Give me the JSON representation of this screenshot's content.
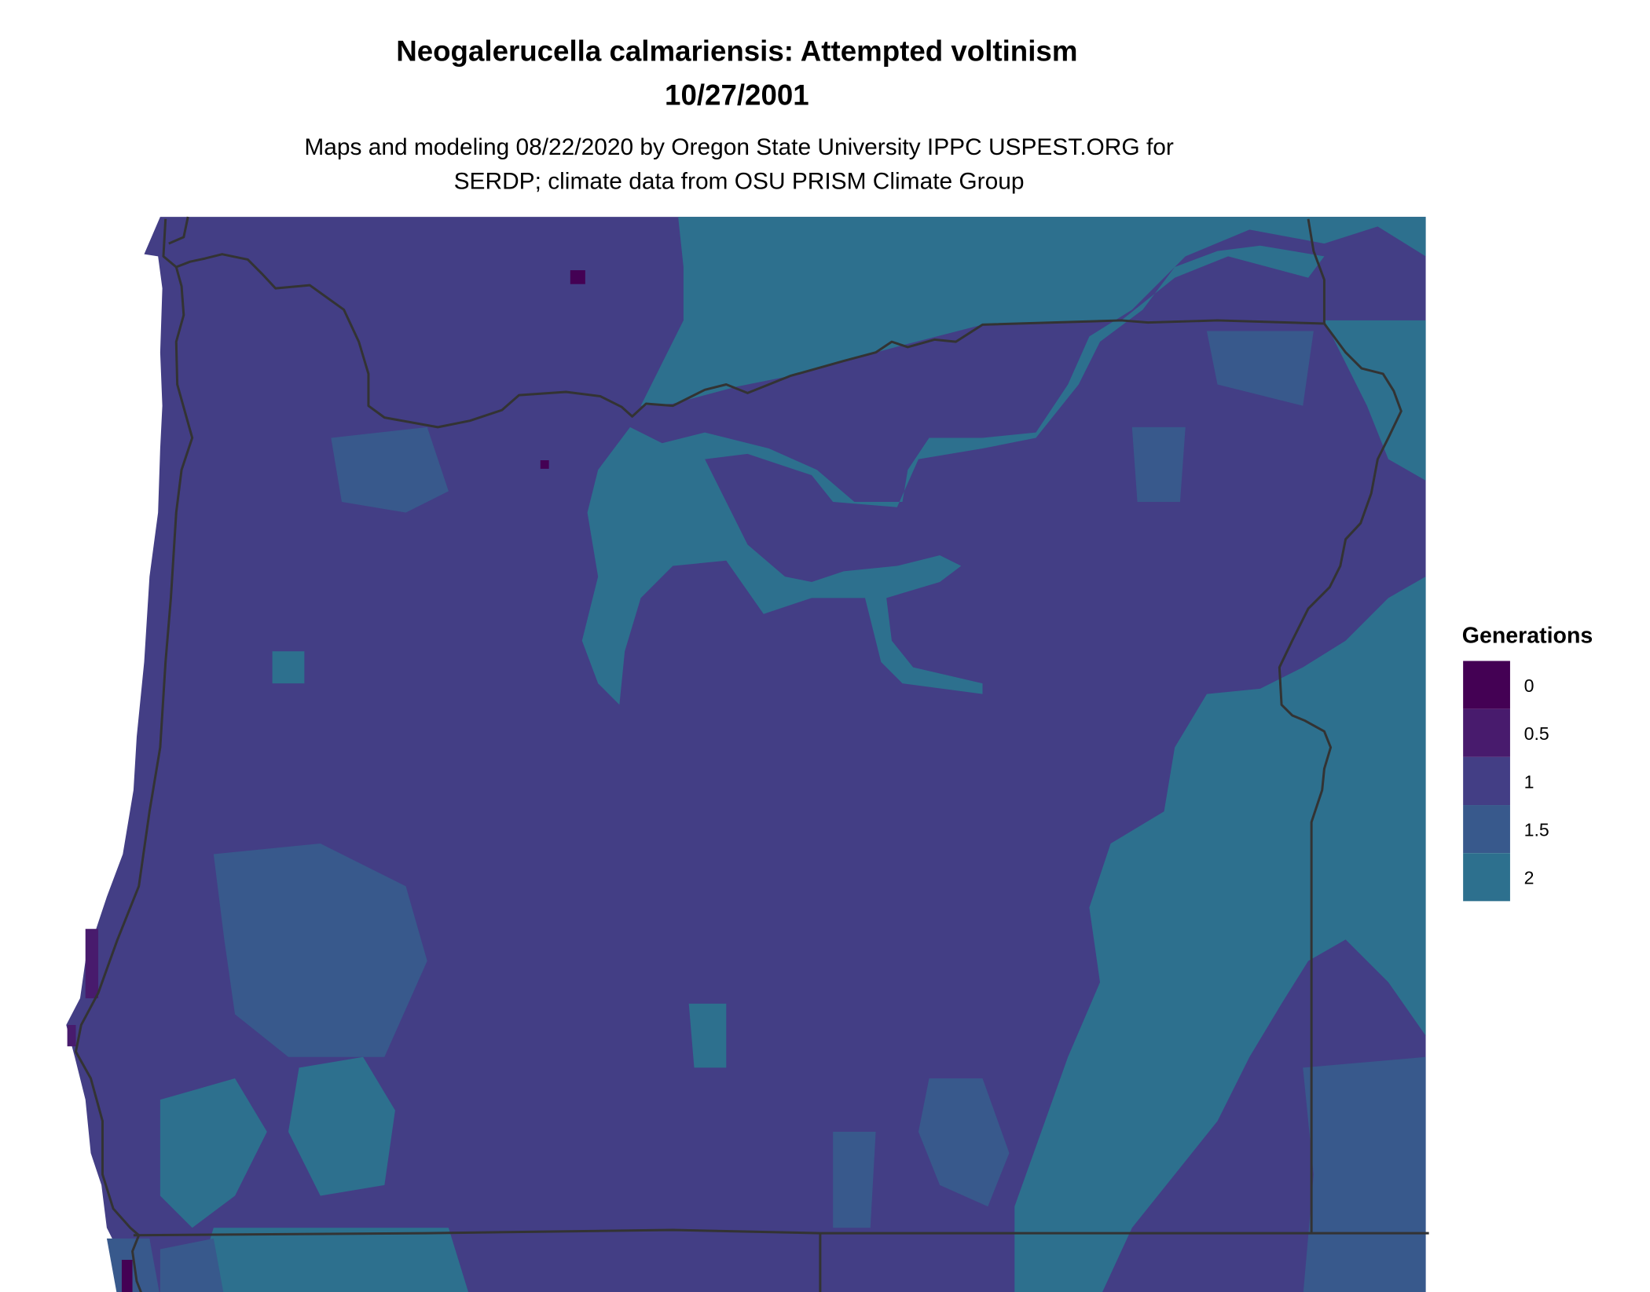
{
  "title": "Neogalerucella calmariensis: Attempted voltinism",
  "date": "10/27/2001",
  "subtitle_line1": "Maps and modeling 08/22/2020 by Oregon State University IPPC USPEST.ORG for",
  "subtitle_line2": "SERDP; climate data from OSU PRISM Climate Group",
  "legend": {
    "title": "Generations",
    "items": [
      {
        "label": "0",
        "value": 0,
        "color": "#440154"
      },
      {
        "label": "0.5",
        "value": 0.5,
        "color": "#481B6D"
      },
      {
        "label": "1",
        "value": 1,
        "color": "#433E85"
      },
      {
        "label": "1.5",
        "value": 1.5,
        "color": "#38598C"
      },
      {
        "label": "2",
        "value": 2,
        "color": "#2D708E"
      }
    ]
  },
  "colors": {
    "border": "#333333",
    "background": "#ffffff"
  },
  "chart_data": {
    "type": "heatmap",
    "title": "Neogalerucella calmariensis: Attempted voltinism",
    "subtitle": "10/27/2001",
    "legend_title": "Generations",
    "legend_placement": "right",
    "scale": [
      0,
      0.5,
      1,
      1.5,
      2
    ],
    "dominant_value": 1
  }
}
